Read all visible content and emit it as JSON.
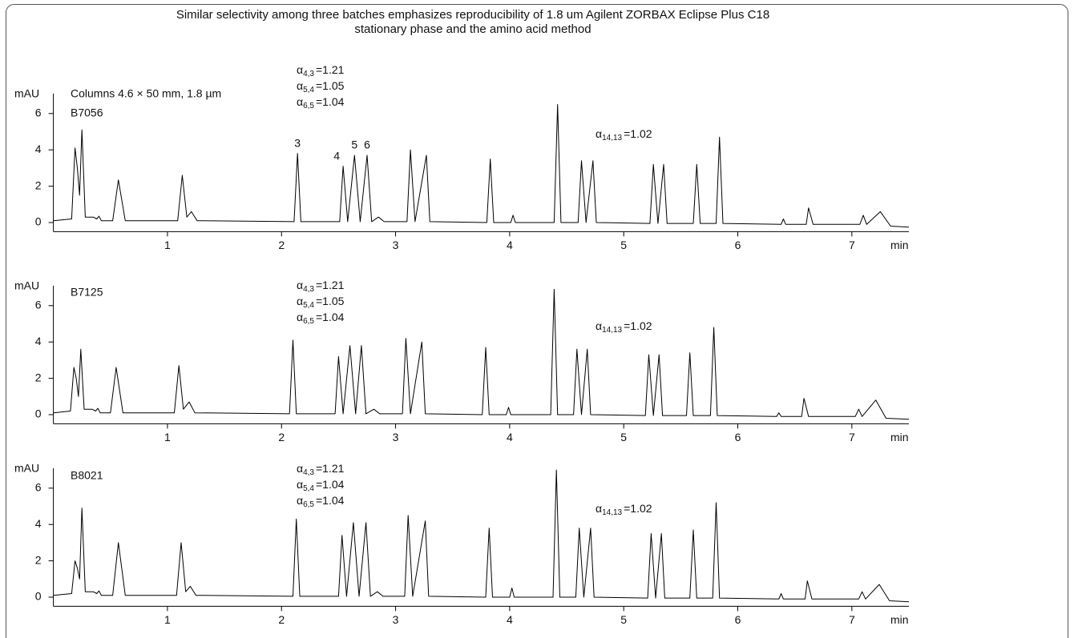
{
  "chart_data": [
    {
      "type": "line",
      "title": [
        "Similar selectivity among three batches emphasizes reproducibility of 1.8 um Agilent ZORBAX Eclipse Plus C18",
        "stationary phase and the amino acid method"
      ],
      "note": "Columns  4.6 × 50 mm, 1.8 µm",
      "ylabel": "mAU",
      "xlabel": "min",
      "xlim": [
        0,
        7.5
      ],
      "ylim": [
        -0.5,
        7.1
      ],
      "xticks": [
        1,
        2,
        3,
        4,
        5,
        6,
        7
      ],
      "yticks": [
        0,
        2,
        4,
        6
      ],
      "annotations": [
        {
          "symbol": "α",
          "sub": "4,3",
          "text": "=1.21"
        },
        {
          "symbol": "α",
          "sub": "5,4",
          "text": "=1.05"
        },
        {
          "symbol": "α",
          "sub": "6,5",
          "text": "=1.04"
        },
        {
          "symbol": "α",
          "sub": "14,13",
          "text": "=1.02"
        }
      ],
      "peaks": [
        {
          "label": "3",
          "x": 2.14
        },
        {
          "label": "4",
          "x": 2.54
        },
        {
          "label": "5",
          "x": 2.64
        },
        {
          "label": "6",
          "x": 2.75
        }
      ],
      "x": [
        0,
        0.16,
        0.19,
        0.21,
        0.23,
        0.25,
        0.28,
        0.35,
        0.38,
        0.4,
        0.42,
        0.52,
        0.57,
        0.63,
        1.09,
        1.13,
        1.17,
        1.21,
        1.26,
        2.11,
        2.14,
        2.17,
        2.51,
        2.54,
        2.58,
        2.64,
        2.69,
        2.75,
        2.79,
        2.85,
        2.9,
        3.1,
        3.13,
        3.17,
        3.27,
        3.3,
        3.8,
        3.83,
        3.86,
        4.01,
        4.03,
        4.05,
        4.39,
        4.42,
        4.45,
        4.6,
        4.63,
        4.67,
        4.73,
        4.76,
        5.23,
        5.26,
        5.3,
        5.35,
        5.38,
        5.61,
        5.64,
        5.67,
        5.81,
        5.84,
        5.87,
        6.38,
        6.4,
        6.42,
        6.6,
        6.62,
        6.66,
        7.07,
        7.1,
        7.13,
        7.25,
        7.34,
        7.5
      ],
      "series": [
        {
          "name": "B7056",
          "color": "#000000",
          "values": [
            0.1,
            0.2,
            4.1,
            3.0,
            1.5,
            5.1,
            0.3,
            0.3,
            0.2,
            0.35,
            0.1,
            0.1,
            2.35,
            0.1,
            0.1,
            2.6,
            0.3,
            0.6,
            0.1,
            0.05,
            3.8,
            0.05,
            0.05,
            3.1,
            0.05,
            3.7,
            0.05,
            3.7,
            0.05,
            0.3,
            0.05,
            0.05,
            4.0,
            0.05,
            3.7,
            0.05,
            0,
            3.5,
            0,
            0,
            0.4,
            0,
            0,
            6.5,
            0,
            0,
            3.4,
            0,
            3.4,
            0,
            -0.05,
            3.2,
            -0.05,
            3.2,
            -0.05,
            -0.05,
            3.2,
            -0.05,
            -0.05,
            4.7,
            -0.05,
            -0.1,
            0.2,
            -0.1,
            -0.1,
            0.8,
            -0.1,
            -0.1,
            0.4,
            -0.1,
            0.6,
            -0.2,
            -0.25
          ]
        }
      ]
    },
    {
      "type": "line",
      "ylabel": "mAU",
      "xlabel": "min",
      "xlim": [
        0,
        7.5
      ],
      "ylim": [
        -0.5,
        7.1
      ],
      "xticks": [
        1,
        2,
        3,
        4,
        5,
        6,
        7
      ],
      "yticks": [
        0,
        2,
        4,
        6
      ],
      "annotations": [
        {
          "symbol": "α",
          "sub": "4,3",
          "text": "=1.21"
        },
        {
          "symbol": "α",
          "sub": "5,4",
          "text": "=1.05"
        },
        {
          "symbol": "α",
          "sub": "6,5",
          "text": "=1.04"
        },
        {
          "symbol": "α",
          "sub": "14,13",
          "text": "=1.02"
        }
      ],
      "x": [
        0,
        0.15,
        0.18,
        0.2,
        0.22,
        0.24,
        0.27,
        0.34,
        0.37,
        0.39,
        0.41,
        0.5,
        0.55,
        0.61,
        1.06,
        1.1,
        1.14,
        1.19,
        1.24,
        2.07,
        2.1,
        2.13,
        2.47,
        2.5,
        2.54,
        2.6,
        2.65,
        2.7,
        2.74,
        2.81,
        2.86,
        3.06,
        3.09,
        3.13,
        3.23,
        3.26,
        3.76,
        3.79,
        3.82,
        3.97,
        3.99,
        4.01,
        4.36,
        4.39,
        4.42,
        4.56,
        4.59,
        4.63,
        4.68,
        4.71,
        5.19,
        5.22,
        5.26,
        5.31,
        5.34,
        5.55,
        5.58,
        5.61,
        5.76,
        5.79,
        5.82,
        6.34,
        6.36,
        6.38,
        6.56,
        6.58,
        6.62,
        7.03,
        7.06,
        7.09,
        7.21,
        7.3,
        7.5
      ],
      "series": [
        {
          "name": "B7125",
          "color": "#000000",
          "values": [
            0.1,
            0.2,
            2.6,
            2.0,
            1.0,
            3.6,
            0.3,
            0.3,
            0.2,
            0.35,
            0.1,
            0.1,
            2.6,
            0.1,
            0.1,
            2.7,
            0.3,
            0.7,
            0.1,
            0.05,
            4.1,
            0.05,
            0.05,
            3.2,
            0.05,
            3.8,
            0.05,
            3.8,
            0.05,
            0.3,
            0.05,
            0.05,
            4.2,
            0.05,
            4.0,
            0.05,
            0,
            3.7,
            0,
            0,
            0.4,
            0,
            0,
            6.9,
            0,
            0,
            3.6,
            0,
            3.6,
            0,
            -0.05,
            3.3,
            -0.05,
            3.3,
            -0.05,
            -0.05,
            3.4,
            -0.05,
            -0.05,
            4.8,
            -0.05,
            -0.1,
            0.1,
            -0.1,
            -0.1,
            0.9,
            -0.1,
            -0.1,
            0.3,
            -0.1,
            0.8,
            -0.2,
            -0.25
          ]
        }
      ]
    },
    {
      "type": "line",
      "ylabel": "mAU",
      "xlabel": "min",
      "xlim": [
        0,
        7.5
      ],
      "ylim": [
        -0.5,
        7.1
      ],
      "xticks": [
        1,
        2,
        3,
        4,
        5,
        6,
        7
      ],
      "yticks": [
        0,
        2,
        4,
        6
      ],
      "annotations": [
        {
          "symbol": "α",
          "sub": "4,3",
          "text": "=1.21"
        },
        {
          "symbol": "α",
          "sub": "5,4",
          "text": "=1.04"
        },
        {
          "symbol": "α",
          "sub": "6,5",
          "text": "=1.04"
        },
        {
          "symbol": "α",
          "sub": "14,13",
          "text": "=1.02"
        }
      ],
      "x": [
        0,
        0.16,
        0.19,
        0.21,
        0.23,
        0.25,
        0.28,
        0.35,
        0.38,
        0.4,
        0.42,
        0.52,
        0.57,
        0.63,
        1.08,
        1.12,
        1.16,
        1.2,
        1.25,
        2.1,
        2.13,
        2.16,
        2.5,
        2.53,
        2.57,
        2.63,
        2.68,
        2.74,
        2.78,
        2.84,
        2.89,
        3.08,
        3.11,
        3.15,
        3.26,
        3.29,
        3.79,
        3.82,
        3.85,
        4.0,
        4.02,
        4.04,
        4.38,
        4.41,
        4.44,
        4.58,
        4.61,
        4.65,
        4.71,
        4.74,
        5.21,
        5.24,
        5.28,
        5.33,
        5.36,
        5.58,
        5.61,
        5.64,
        5.78,
        5.81,
        5.84,
        6.36,
        6.38,
        6.4,
        6.59,
        6.61,
        6.65,
        7.06,
        7.09,
        7.12,
        7.24,
        7.33,
        7.5
      ],
      "series": [
        {
          "name": "B8021",
          "color": "#000000",
          "values": [
            0.1,
            0.2,
            2.0,
            1.6,
            1.0,
            4.9,
            0.3,
            0.3,
            0.2,
            0.35,
            0.1,
            0.1,
            3.0,
            0.1,
            0.1,
            3.0,
            0.3,
            0.6,
            0.1,
            0.05,
            4.3,
            0.05,
            0.05,
            3.4,
            0.05,
            4.1,
            0.05,
            4.1,
            0.05,
            0.3,
            0.05,
            0.05,
            4.5,
            0.05,
            4.2,
            0.05,
            0,
            3.8,
            0,
            0,
            0.5,
            0,
            0,
            7.0,
            0,
            0,
            3.8,
            0,
            3.8,
            0,
            -0.05,
            3.5,
            -0.05,
            3.5,
            -0.05,
            -0.05,
            3.7,
            -0.05,
            -0.05,
            5.2,
            -0.05,
            -0.1,
            0.2,
            -0.1,
            -0.1,
            0.9,
            -0.1,
            -0.1,
            0.3,
            -0.1,
            0.7,
            -0.2,
            -0.25
          ]
        }
      ]
    }
  ]
}
